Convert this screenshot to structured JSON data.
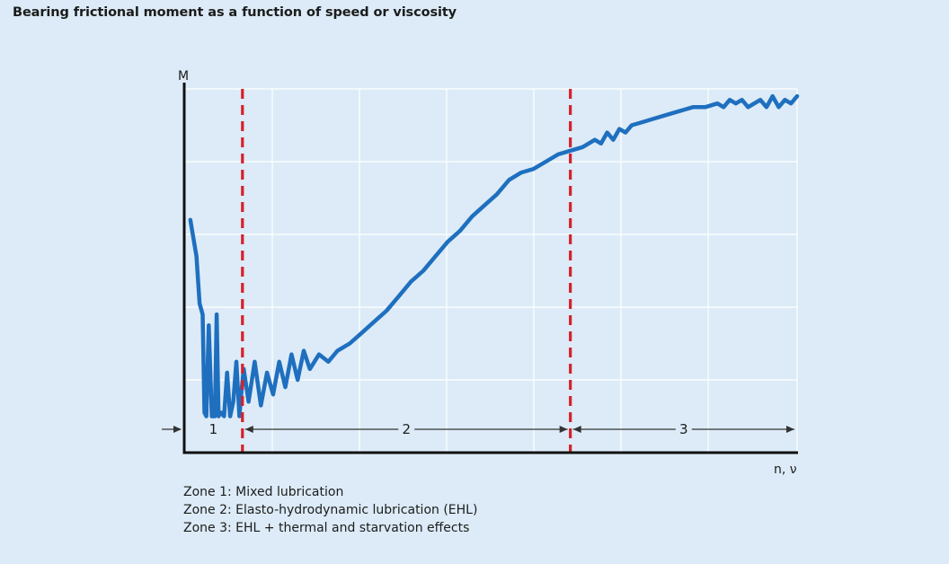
{
  "chart_data": {
    "type": "line",
    "title": "Bearing frictional moment as a function of speed or viscosity",
    "ylabel": "M",
    "xlabel": "n, ν",
    "ylim": [
      0,
      10
    ],
    "xlim": [
      0,
      100
    ],
    "grid": true,
    "zone_boundaries": [
      9.5,
      63
    ],
    "zones": [
      {
        "label": "1",
        "from": 0,
        "to": 9.5
      },
      {
        "label": "2",
        "from": 9.5,
        "to": 63
      },
      {
        "label": "3",
        "from": 63,
        "to": 100
      }
    ],
    "series": [
      {
        "x": [
          1,
          2,
          2.5,
          3,
          3.3,
          3.6,
          4,
          4.5,
          5,
          5.3,
          5.6,
          6,
          6.5,
          7,
          7.5,
          8,
          8.5,
          9,
          9.3,
          9.7,
          10.5,
          11.5,
          12.5,
          13.5,
          14.5,
          15.5,
          16.5,
          17.5,
          18.5,
          19.5,
          20.5,
          22,
          23.5,
          25,
          27,
          29,
          31,
          33,
          35,
          37,
          39,
          41,
          43,
          45,
          47,
          49,
          51,
          53,
          55,
          57,
          59,
          61,
          63,
          65,
          67,
          68,
          69,
          70,
          71,
          72,
          73,
          75,
          77,
          79,
          81,
          83,
          85,
          87,
          88,
          89,
          90,
          91,
          92,
          93,
          94,
          95,
          96,
          97,
          98,
          99,
          100
        ],
        "y": [
          6.4,
          5.4,
          4.1,
          3.8,
          1.1,
          1.0,
          3.5,
          1.0,
          1.0,
          3.8,
          1.0,
          1.1,
          1.0,
          2.2,
          1.0,
          1.4,
          2.5,
          1.0,
          1.6,
          2.3,
          1.4,
          2.5,
          1.3,
          2.2,
          1.6,
          2.5,
          1.8,
          2.7,
          2.0,
          2.8,
          2.3,
          2.7,
          2.5,
          2.8,
          3.0,
          3.3,
          3.6,
          3.9,
          4.3,
          4.7,
          5.0,
          5.4,
          5.8,
          6.1,
          6.5,
          6.8,
          7.1,
          7.5,
          7.7,
          7.8,
          8.0,
          8.2,
          8.3,
          8.4,
          8.6,
          8.5,
          8.8,
          8.6,
          8.9,
          8.8,
          9.0,
          9.1,
          9.2,
          9.3,
          9.4,
          9.5,
          9.5,
          9.6,
          9.5,
          9.7,
          9.6,
          9.7,
          9.5,
          9.6,
          9.7,
          9.5,
          9.8,
          9.5,
          9.7,
          9.6,
          9.8
        ]
      }
    ]
  },
  "legend_lines": [
    "Zone 1: Mixed lubrication",
    "Zone 2: Elasto-hydrodynamic lubrication (EHL)",
    "Zone 3: EHL + thermal and starvation effects"
  ],
  "colors": {
    "background": "#dcebf7",
    "grid": "#ffffff",
    "axis": "#111111",
    "curve": "#1f6fbf",
    "zone_boundary": "#d6202a",
    "zone_arrow": "#333333"
  }
}
